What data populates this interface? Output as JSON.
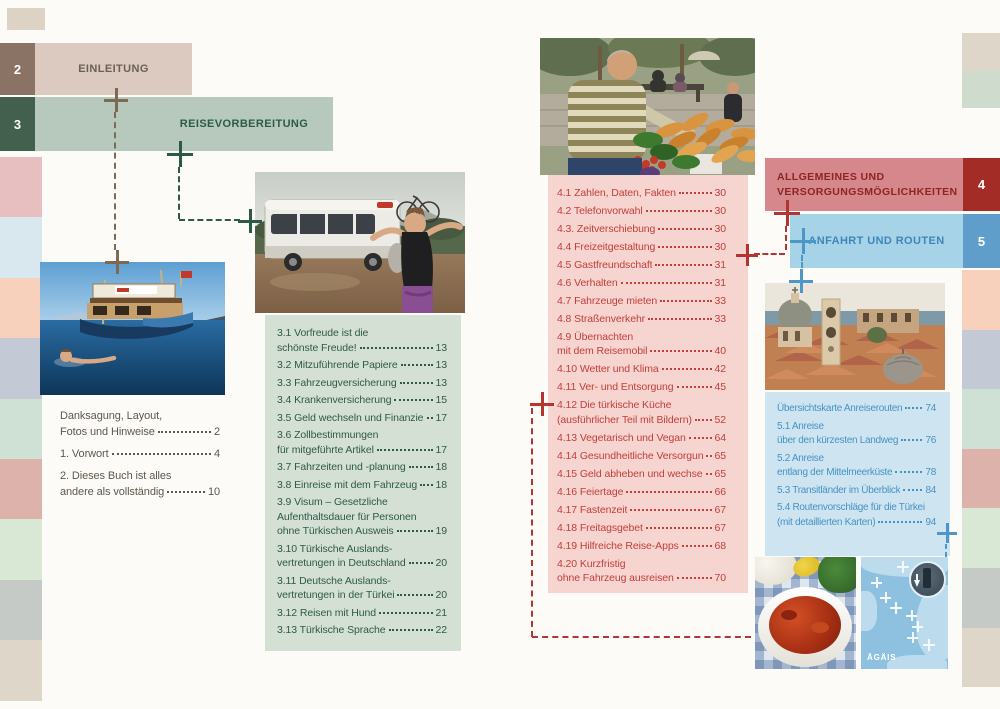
{
  "chapters": {
    "einleitung": {
      "num": "2",
      "label": "EINLEITUNG"
    },
    "reisevorbereitung": {
      "num": "3",
      "label": "REISEVORBEREITUNG"
    },
    "allgemeines": {
      "num": "4",
      "label_line1": "ALLGEMEINES UND",
      "label_line2": "VERSORGUNGSMÖGLICHKEITEN"
    },
    "anfahrt": {
      "num": "5",
      "label": "ANFAHRT UND ROUTEN"
    }
  },
  "toc_intro": [
    {
      "lines": [
        "Danksagung, Layout,",
        "Fotos und Hinweise"
      ],
      "page": "2"
    },
    {
      "lines": [
        "1. Vorwort"
      ],
      "page": "4"
    },
    {
      "lines": [
        "2. Dieses Buch ist alles",
        "andere als vollständig"
      ],
      "page": "10"
    }
  ],
  "toc_ch3": [
    {
      "lines": [
        "3.1 Vorfreude ist die",
        "schönste Freude!"
      ],
      "page": "13"
    },
    {
      "lines": [
        "3.2 Mitzuführende Papiere"
      ],
      "page": "13"
    },
    {
      "lines": [
        "3.3 Fahrzeugversicherung"
      ],
      "page": "13"
    },
    {
      "lines": [
        "3.4 Krankenversicherung"
      ],
      "page": "15"
    },
    {
      "lines": [
        "3.5 Geld wechseln und Finanzielles"
      ],
      "page": "17"
    },
    {
      "lines": [
        "3.6 Zollbestimmungen",
        "für mitgeführte Artikel"
      ],
      "page": "17"
    },
    {
      "lines": [
        "3.7 Fahrzeiten und -planung"
      ],
      "page": "18"
    },
    {
      "lines": [
        "3.8 Einreise mit dem Fahrzeug"
      ],
      "page": "18"
    },
    {
      "lines": [
        "3.9 Visum – Gesetzliche",
        "Aufenthaltsdauer für Personen",
        "ohne Türkischen Ausweis"
      ],
      "page": "19"
    },
    {
      "lines": [
        "3.10 Türkische Auslands-",
        "vertretungen in Deutschland"
      ],
      "page": "20"
    },
    {
      "lines": [
        "3.11 Deutsche Auslands-",
        "vertretungen in der Türkei"
      ],
      "page": "20"
    },
    {
      "lines": [
        "3.12 Reisen mit Hund"
      ],
      "page": "21"
    },
    {
      "lines": [
        "3.13 Türkische Sprache"
      ],
      "page": "22"
    }
  ],
  "toc_ch4": [
    {
      "lines": [
        "4.1 Zahlen, Daten, Fakten"
      ],
      "page": "30"
    },
    {
      "lines": [
        "4.2 Telefonvorwahl"
      ],
      "page": "30"
    },
    {
      "lines": [
        "4.3. Zeitverschiebung"
      ],
      "page": "30"
    },
    {
      "lines": [
        "4.4 Freizeitgestaltung"
      ],
      "page": "30"
    },
    {
      "lines": [
        "4.5 Gastfreundschaft"
      ],
      "page": "31"
    },
    {
      "lines": [
        "4.6 Verhalten"
      ],
      "page": "31"
    },
    {
      "lines": [
        "4.7 Fahrzeuge mieten"
      ],
      "page": "33"
    },
    {
      "lines": [
        "4.8 Straßenverkehr"
      ],
      "page": "33"
    },
    {
      "lines": [
        "4.9 Übernachten",
        "mit dem Reisemobil"
      ],
      "page": "40"
    },
    {
      "lines": [
        "4.10 Wetter und Klima"
      ],
      "page": "42"
    },
    {
      "lines": [
        "4.11 Ver- und Entsorgung"
      ],
      "page": "45"
    },
    {
      "lines": [
        "4.12 Die türkische Küche",
        "(ausführlicher Teil mit Bildern)"
      ],
      "page": "52"
    },
    {
      "lines": [
        "4.13 Vegetarisch und Vegan"
      ],
      "page": "64"
    },
    {
      "lines": [
        "4.14 Gesundheitliche Versorgung"
      ],
      "page": "65"
    },
    {
      "lines": [
        "4.15 Geld abheben und wechseln"
      ],
      "page": "65"
    },
    {
      "lines": [
        "4.16 Feiertage"
      ],
      "page": "66"
    },
    {
      "lines": [
        "4.17 Fastenzeit"
      ],
      "page": "67"
    },
    {
      "lines": [
        "4.18 Freitagsgebet"
      ],
      "page": "67"
    },
    {
      "lines": [
        "4.19 Hilfreiche Reise-Apps"
      ],
      "page": "68"
    },
    {
      "lines": [
        "4.20 Kurzfristig",
        "ohne Fahrzeug ausreisen"
      ],
      "page": "70"
    }
  ],
  "toc_ch5": [
    {
      "lines": [
        "Übersichtskarte Anreiserouten"
      ],
      "page": "74"
    },
    {
      "lines": [
        "5.1 Anreise",
        "über den kürzesten Landweg"
      ],
      "page": "76"
    },
    {
      "lines": [
        "5.2 Anreise",
        "entlang der Mittelmeerküste"
      ],
      "page": "78"
    },
    {
      "lines": [
        "5.3 Transitländer im Überblick"
      ],
      "page": "84"
    },
    {
      "lines": [
        "5.4 Routenvorschläge für die Türkei",
        "(mit detaillierten Karten)"
      ],
      "page": "94"
    }
  ],
  "map": {
    "sea_label": "ÄGÄIS"
  },
  "colors": {
    "chapter2_tab": "#8a7264",
    "chapter2_bar": "#dcc9c0",
    "chapter2_text": "#6c6056",
    "chapter3_tab": "#435f4e",
    "chapter3_bar": "#b6c9bc",
    "chapter3_text": "#2e5a4a",
    "chapter3_panel": "#d4e0d3",
    "chapter3_entry_text": "#2e5a4a",
    "chapter4_tab": "#a32d26",
    "chapter4_bar": "#d5878b",
    "chapter4_text": "#8e2424",
    "chapter4_panel": "#f6d4d0",
    "chapter4_entry_text": "#c4403a",
    "chapter5_tab": "#5f9ecb",
    "chapter5_bar": "#a7d3e9",
    "chapter5_text": "#3d87b8",
    "chapter5_panel": "#cfe4f1",
    "chapter5_entry_text": "#4593c3",
    "intro_text": "#5f574e",
    "mark_brown": "#7c6a55",
    "mark_green": "#2d5a48",
    "mark_red": "#b33430",
    "mark_blue": "#4d97c7",
    "corner_tab": "#ddd3c5",
    "edge_left": [
      "#e7bfc1",
      "#d9e7ef",
      "#f8d1bc",
      "#c4c9d6",
      "#cfe0d5",
      "#dcb2ab",
      "#d9e7d5",
      "#c5cac6",
      "#ded6c8"
    ],
    "edge_right_top": [
      "#ded6c8",
      "#cfdccd"
    ],
    "edge_right_bottom": [
      "#f8d1bc",
      "#c4c9d6",
      "#cfe0d5",
      "#dcb2ab",
      "#d9e7d5",
      "#c5cac6",
      "#ded6c8"
    ]
  }
}
